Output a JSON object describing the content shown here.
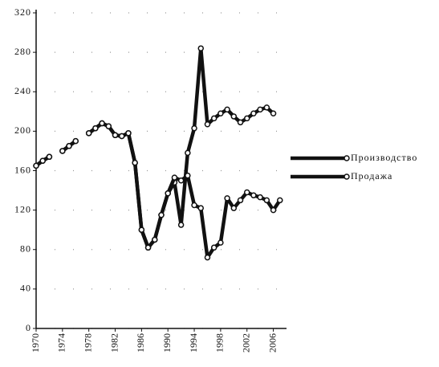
{
  "chart_data": {
    "type": "line",
    "x": [
      1970,
      1971,
      1972,
      1973,
      1974,
      1975,
      1976,
      1977,
      1978,
      1979,
      1980,
      1981,
      1982,
      1983,
      1984,
      1985,
      1986,
      1987,
      1988,
      1989,
      1990,
      1991,
      1992,
      1993,
      1994,
      1995,
      1996,
      1997,
      1998,
      1999,
      2000,
      2001,
      2002,
      2003,
      2004,
      2005,
      2006,
      2007
    ],
    "series": [
      {
        "name": "Производство",
        "color": "#111111",
        "values": [
          165,
          170,
          174,
          null,
          180,
          185,
          190,
          null,
          198,
          203,
          208,
          205,
          196,
          195,
          198,
          168,
          100,
          82,
          90,
          115,
          137,
          148,
          105,
          178,
          203,
          284,
          207,
          213,
          218,
          222,
          215,
          209,
          213,
          218,
          222,
          224,
          218,
          null
        ]
      },
      {
        "name": "Продажа",
        "color": "#111111",
        "values": [
          165,
          170,
          174,
          null,
          180,
          185,
          190,
          null,
          198,
          203,
          208,
          205,
          196,
          195,
          198,
          168,
          100,
          82,
          90,
          115,
          137,
          153,
          150,
          155,
          125,
          122,
          72,
          82,
          87,
          132,
          122,
          130,
          138,
          135,
          133,
          130,
          120,
          130
        ]
      }
    ],
    "xlim": [
      1970,
      2008
    ],
    "xticks": [
      1970,
      1974,
      1978,
      1982,
      1986,
      1990,
      1994,
      1998,
      2002,
      2006
    ],
    "ylim": [
      0,
      320
    ],
    "yticks": [
      0,
      40,
      80,
      120,
      160,
      200,
      240,
      280,
      320
    ],
    "grid": true
  }
}
